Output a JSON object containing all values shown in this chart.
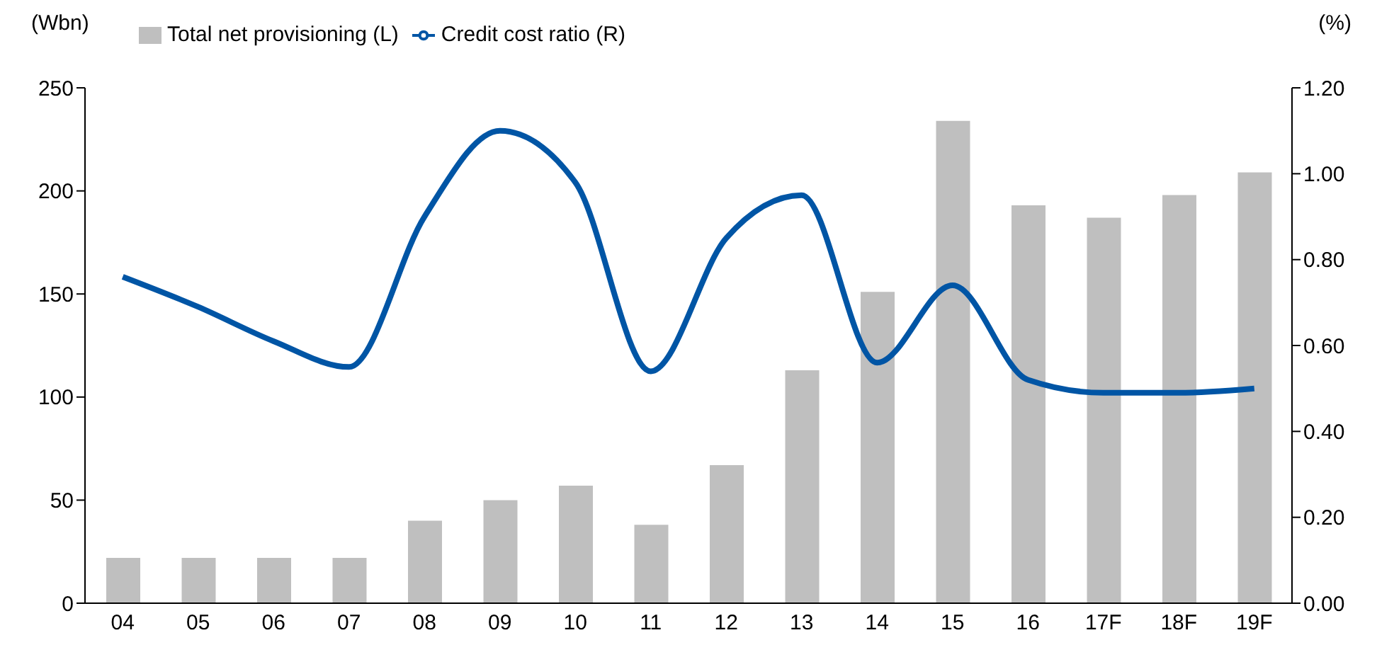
{
  "chart_data": {
    "type": "bar",
    "ylabel": "(Wbn)",
    "y2label": "(%)",
    "categories": [
      "04",
      "05",
      "06",
      "07",
      "08",
      "09",
      "10",
      "11",
      "12",
      "13",
      "14",
      "15",
      "16",
      "17F",
      "18F",
      "19F"
    ],
    "series": [
      {
        "name": "Total net provisioning (L)",
        "color": "#bfbfbf",
        "values": [
          22,
          22,
          22,
          22,
          40,
          50,
          57,
          38,
          67,
          113,
          151,
          234,
          193,
          187,
          198,
          209
        ]
      },
      {
        "name": "Credit cost ratio (R)",
        "type": "line",
        "axis": "y2",
        "color": "#0055a5",
        "values": [
          0.76,
          0.69,
          0.61,
          0.55,
          0.9,
          1.1,
          0.98,
          0.54,
          0.85,
          0.95,
          0.56,
          0.74,
          0.52,
          0.49,
          0.49,
          0.5
        ]
      }
    ],
    "ylim": [
      0,
      250
    ],
    "yticks": [
      0,
      50,
      100,
      150,
      200,
      250
    ],
    "y2lim": [
      0,
      1.2
    ],
    "y2ticks": [
      {
        "value": 0,
        "label": "0.00"
      },
      {
        "value": 0.2,
        "label": "0.20"
      },
      {
        "value": 0.4,
        "label": "0.40"
      },
      {
        "value": 0.6,
        "label": "0.60"
      },
      {
        "value": 0.8,
        "label": "0.80"
      },
      {
        "value": 1,
        "label": "1.00"
      },
      {
        "value": 1.2,
        "label": "1.20"
      }
    ],
    "grid": false,
    "legend": "top",
    "marker": "none"
  }
}
